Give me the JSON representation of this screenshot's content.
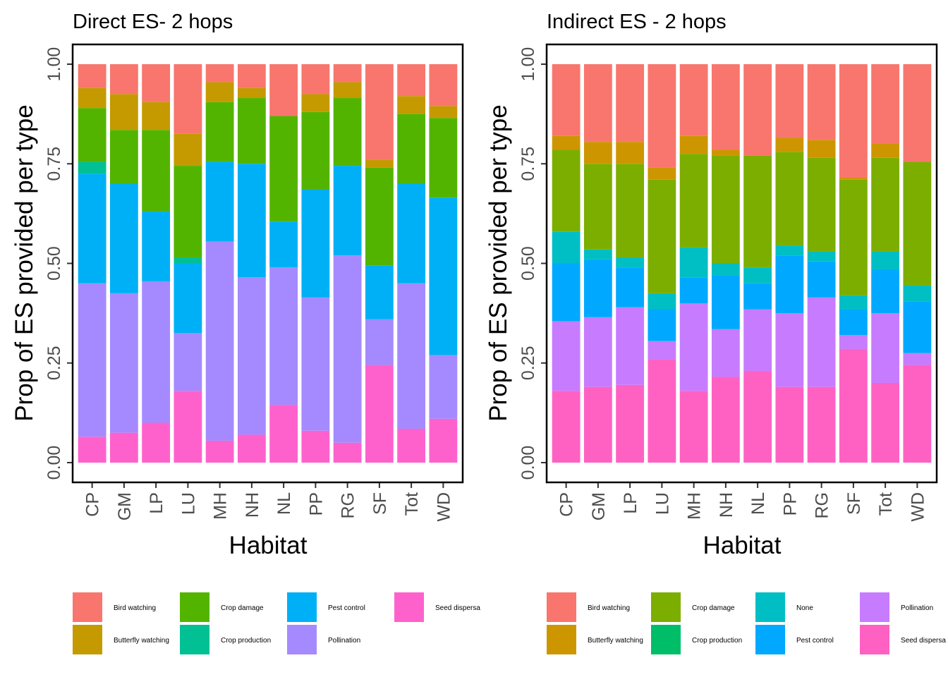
{
  "chart_data": [
    {
      "type": "bar",
      "stacked": true,
      "title": "Direct ES- 2 hops",
      "xlabel": "Habitat",
      "ylabel": "Prop of ES provided per type",
      "ylim": [
        0,
        1
      ],
      "yticks": [
        "0.00",
        "0.25",
        "0.50",
        "0.75",
        "1.00"
      ],
      "grid": false,
      "legend_position": "bottom",
      "categories": [
        "CP",
        "GM",
        "LP",
        "LU",
        "MH",
        "NH",
        "NL",
        "PP",
        "RG",
        "SF",
        "Tot",
        "WD"
      ],
      "series": [
        {
          "name": "Seed dispersa",
          "color": "#FF61CC",
          "values": [
            0.065,
            0.075,
            0.1,
            0.18,
            0.055,
            0.07,
            0.145,
            0.08,
            0.05,
            0.245,
            0.085,
            0.11
          ]
        },
        {
          "name": "Pollination",
          "color": "#A58AFF",
          "values": [
            0.385,
            0.35,
            0.355,
            0.145,
            0.5,
            0.395,
            0.345,
            0.335,
            0.47,
            0.115,
            0.365,
            0.16
          ]
        },
        {
          "name": "Pest control",
          "color": "#00B0F6",
          "values": [
            0.275,
            0.275,
            0.175,
            0.175,
            0.2,
            0.285,
            0.115,
            0.27,
            0.225,
            0.135,
            0.25,
            0.395
          ]
        },
        {
          "name": "Crop production",
          "color": "#00C094",
          "values": [
            0.03,
            0,
            0,
            0.015,
            0,
            0,
            0,
            0,
            0,
            0,
            0,
            0
          ]
        },
        {
          "name": "Crop damage",
          "color": "#53B400",
          "values": [
            0.135,
            0.135,
            0.205,
            0.23,
            0.15,
            0.165,
            0.265,
            0.195,
            0.17,
            0.245,
            0.175,
            0.2
          ]
        },
        {
          "name": "Butterfly watching",
          "color": "#C49A00",
          "values": [
            0.05,
            0.09,
            0.07,
            0.08,
            0.05,
            0.025,
            0,
            0.045,
            0.04,
            0.02,
            0.045,
            0.03
          ]
        },
        {
          "name": "Bird watching",
          "color": "#F8766D",
          "values": [
            0.06,
            0.075,
            0.095,
            0.175,
            0.045,
            0.06,
            0.13,
            0.075,
            0.045,
            0.24,
            0.08,
            0.105
          ]
        }
      ],
      "legend_order": [
        "Bird watching",
        "Butterfly watching",
        "Crop damage",
        "Crop production",
        "Pest control",
        "Pollination",
        "Seed dispersa"
      ]
    },
    {
      "type": "bar",
      "stacked": true,
      "title": "Indirect ES - 2 hops",
      "xlabel": "Habitat",
      "ylabel": "Prop of ES provided per type",
      "ylim": [
        0,
        1
      ],
      "yticks": [
        "0.00",
        "0.25",
        "0.50",
        "0.75",
        "1.00"
      ],
      "grid": false,
      "legend_position": "bottom",
      "categories": [
        "CP",
        "GM",
        "LP",
        "LU",
        "MH",
        "NH",
        "NL",
        "PP",
        "RG",
        "SF",
        "Tot",
        "WD"
      ],
      "series": [
        {
          "name": "Seed dispersa",
          "color": "#FF61C3",
          "values": [
            0.18,
            0.19,
            0.195,
            0.26,
            0.18,
            0.215,
            0.23,
            0.19,
            0.19,
            0.285,
            0.2,
            0.245
          ]
        },
        {
          "name": "Pollination",
          "color": "#C77CFF",
          "values": [
            0.175,
            0.175,
            0.195,
            0.045,
            0.22,
            0.12,
            0.155,
            0.185,
            0.225,
            0.035,
            0.175,
            0.03
          ]
        },
        {
          "name": "Pest control",
          "color": "#00A9FF",
          "values": [
            0.145,
            0.145,
            0.1,
            0.08,
            0.065,
            0.135,
            0.065,
            0.145,
            0.09,
            0.065,
            0.11,
            0.13
          ]
        },
        {
          "name": "None",
          "color": "#00BFC4",
          "values": [
            0.08,
            0.025,
            0.025,
            0.04,
            0.075,
            0.03,
            0.04,
            0.025,
            0.025,
            0.035,
            0.045,
            0.04
          ]
        },
        {
          "name": "Crop production",
          "color": "#00BE67",
          "values": [
            0,
            0,
            0,
            0,
            0,
            0,
            0,
            0,
            0,
            0,
            0,
            0
          ]
        },
        {
          "name": "Crop damage",
          "color": "#7CAE00",
          "values": [
            0.205,
            0.215,
            0.235,
            0.285,
            0.235,
            0.27,
            0.28,
            0.235,
            0.235,
            0.29,
            0.235,
            0.31
          ]
        },
        {
          "name": "Butterfly watching",
          "color": "#CD9600",
          "values": [
            0.035,
            0.055,
            0.055,
            0.03,
            0.045,
            0.015,
            0,
            0.035,
            0.045,
            0.005,
            0.035,
            0
          ]
        },
        {
          "name": "Bird watching",
          "color": "#F8766D",
          "values": [
            0.18,
            0.195,
            0.195,
            0.26,
            0.18,
            0.215,
            0.23,
            0.185,
            0.19,
            0.285,
            0.2,
            0.245
          ]
        }
      ],
      "legend_order": [
        "Bird watching",
        "Butterfly watching",
        "Crop damage",
        "Crop production",
        "None",
        "Pest control",
        "Pollination",
        "Seed dispersa"
      ]
    }
  ]
}
